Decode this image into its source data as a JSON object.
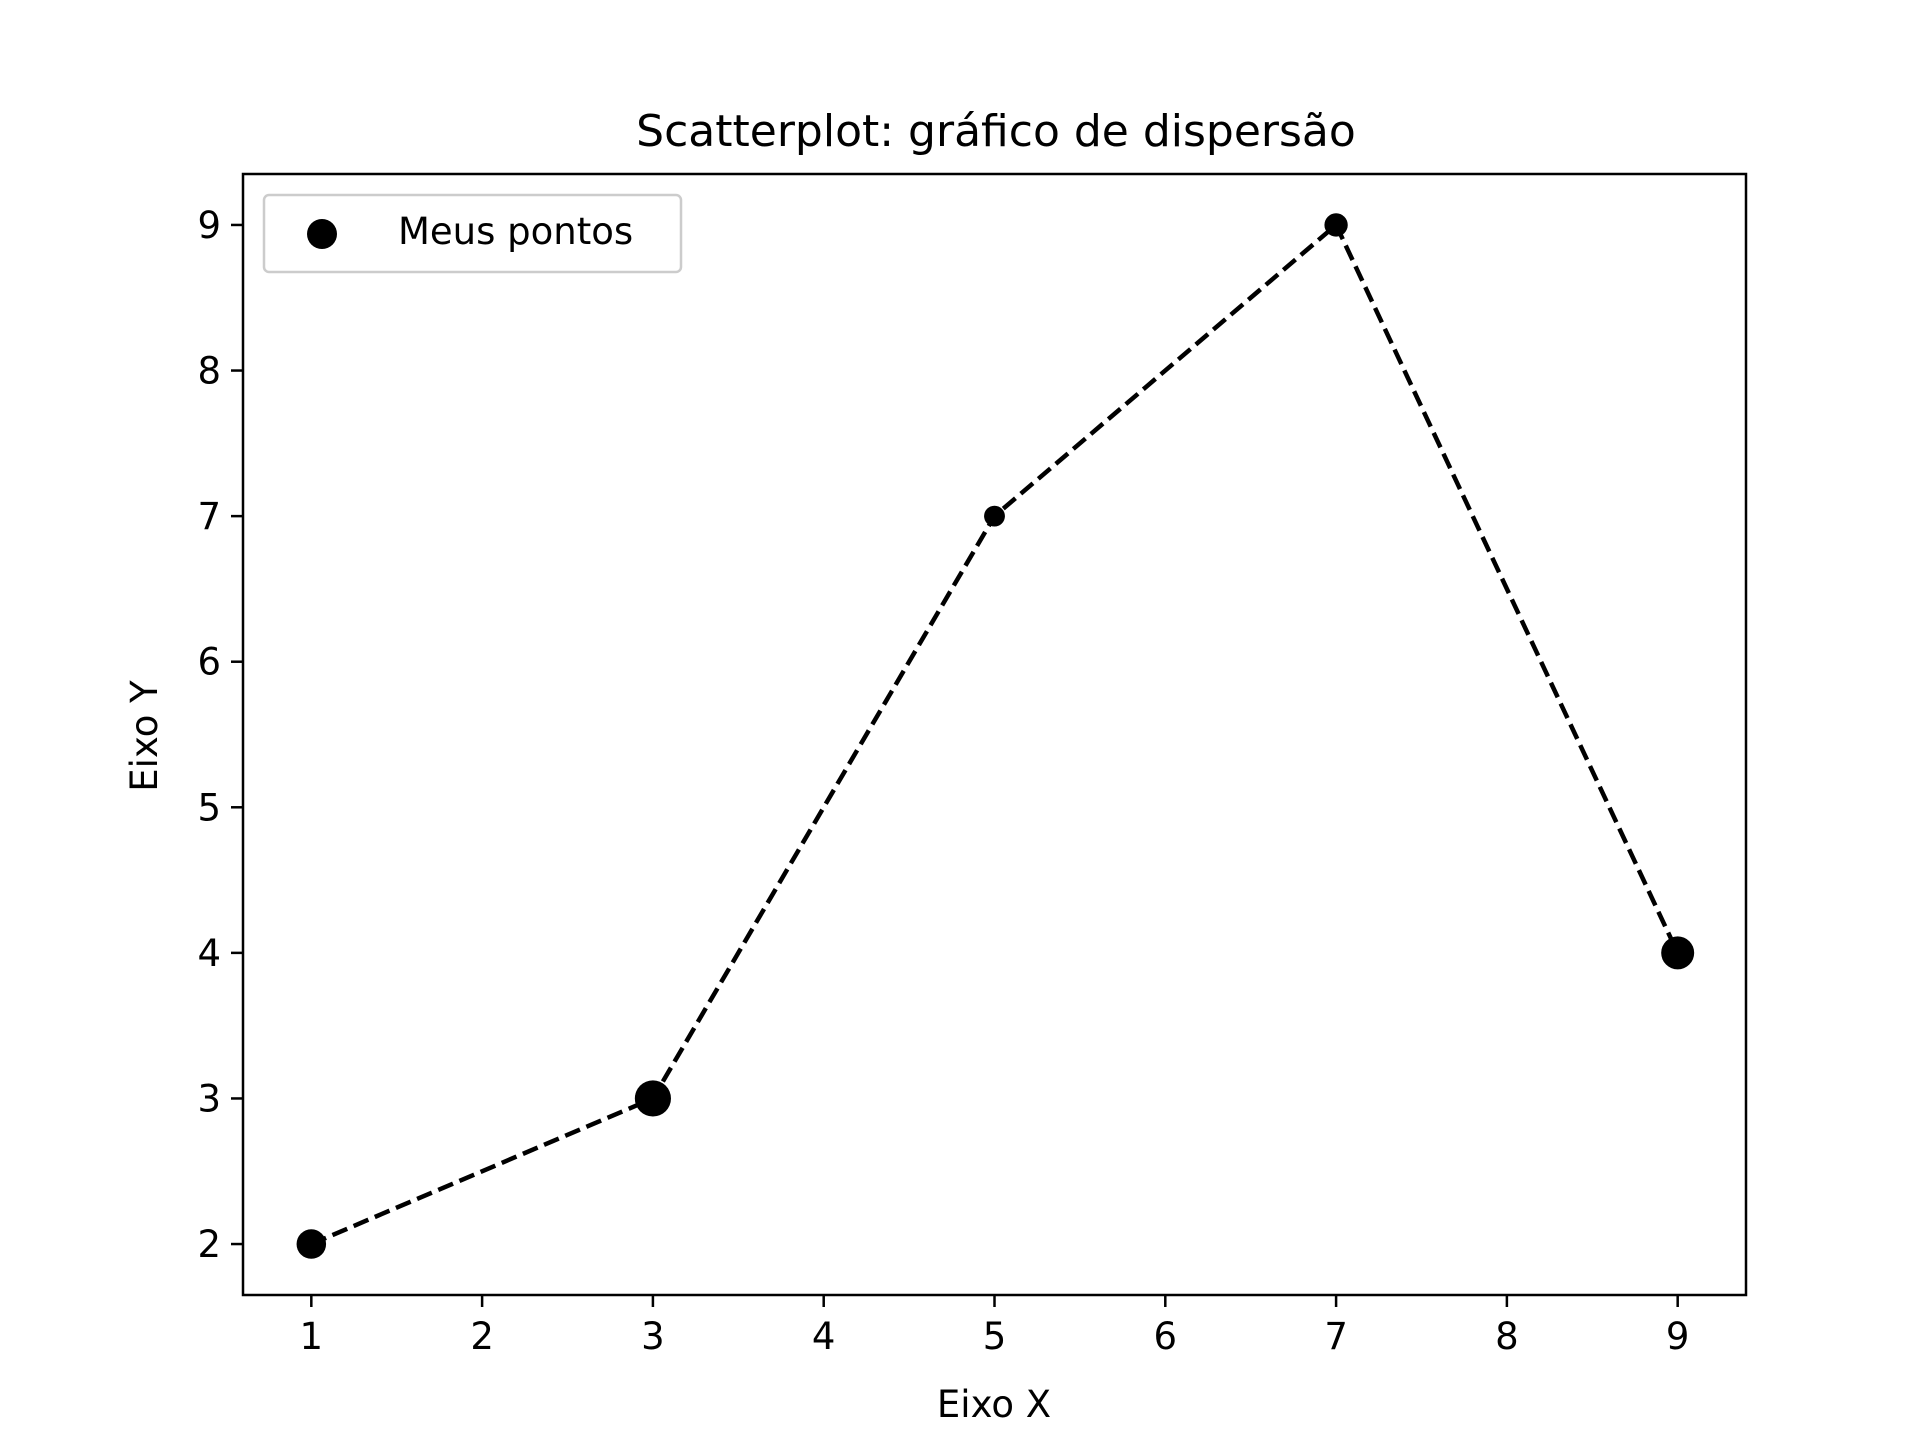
{
  "chart_data": {
    "type": "scatter",
    "title": "Scatterplot: gráfico de dispersão",
    "xlabel": "Eixo X",
    "ylabel": "Eixo Y",
    "x": [
      1,
      3,
      5,
      7,
      9
    ],
    "y": [
      2,
      3,
      7,
      9,
      4
    ],
    "marker_sizes": [
      80,
      120,
      40,
      50,
      100
    ],
    "xlim": [
      0.6,
      9.4
    ],
    "ylim": [
      1.65,
      9.35
    ],
    "xticks": [
      "1",
      "2",
      "3",
      "4",
      "5",
      "6",
      "7",
      "8",
      "9"
    ],
    "yticks": [
      "2",
      "3",
      "4",
      "5",
      "6",
      "7",
      "8",
      "9"
    ],
    "line_style": "dashed",
    "color": "#000000",
    "grid": false,
    "legend": {
      "placement": "top-left",
      "entries": [
        "Meus pontos"
      ]
    }
  }
}
